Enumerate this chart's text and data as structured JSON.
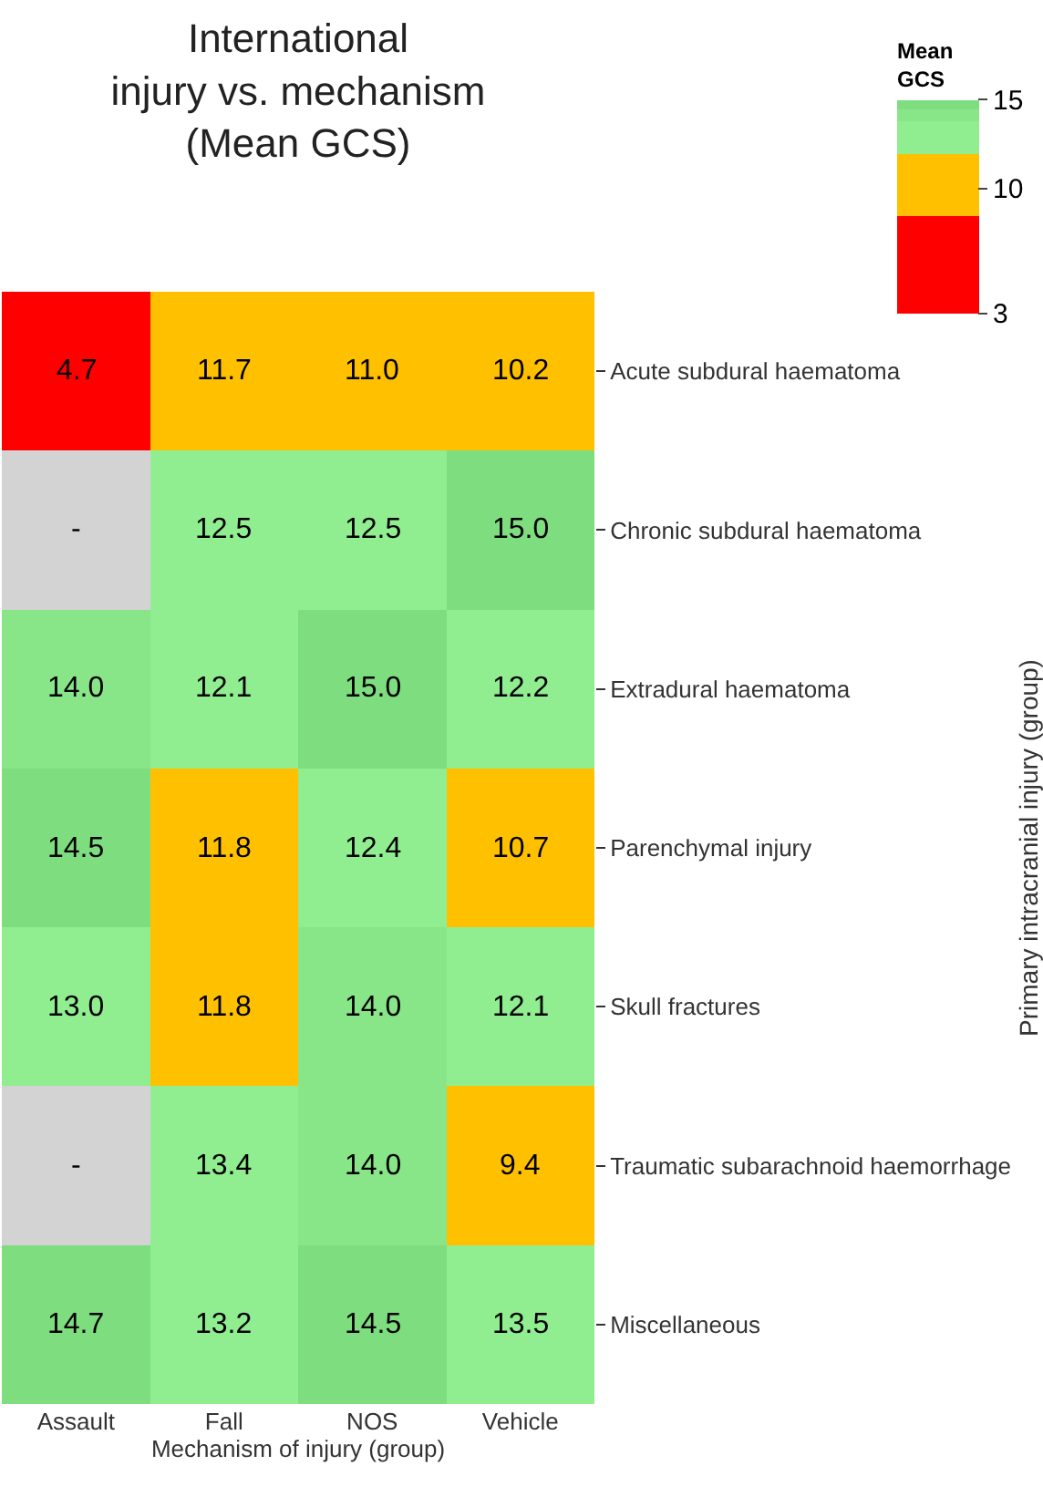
{
  "chart_data": {
    "type": "heatmap",
    "title": "International injury vs. mechanism (Mean GCS)",
    "xlabel": "Mechanism of injury (group)",
    "ylabel": "Primary intracranial injury (group)",
    "clabel": "Mean GCS",
    "categories": [
      "Assault",
      "Fall",
      "NOS",
      "Vehicle"
    ],
    "y_categories": [
      "Acute subdural haematoma",
      "Chronic subdural haematoma",
      "Extradural haematoma",
      "Parenchymal injury",
      "Skull fractures",
      "Traumatic subarachnoid haemorrhage",
      "Miscellaneous"
    ],
    "cells": [
      [
        4.7,
        11.7,
        11.0,
        10.2
      ],
      [
        null,
        12.5,
        12.5,
        15.0
      ],
      [
        14.0,
        12.1,
        15.0,
        12.2
      ],
      [
        14.5,
        11.8,
        12.4,
        10.7
      ],
      [
        13.0,
        11.8,
        14.0,
        12.1
      ],
      [
        null,
        13.4,
        14.0,
        9.4
      ],
      [
        14.7,
        13.2,
        14.5,
        13.5
      ]
    ],
    "cell_labels": [
      [
        "4.7",
        "11.7",
        "11.0",
        "10.2"
      ],
      [
        "-",
        "12.5",
        "12.5",
        "15.0"
      ],
      [
        "14.0",
        "12.1",
        "15.0",
        "12.2"
      ],
      [
        "14.5",
        "11.8",
        "12.4",
        "10.7"
      ],
      [
        "13.0",
        "11.8",
        "14.0",
        "12.1"
      ],
      [
        "-",
        "13.4",
        "14.0",
        "9.4"
      ],
      [
        "14.7",
        "13.2",
        "14.5",
        "13.5"
      ]
    ],
    "clim": [
      3,
      15
    ],
    "cticks": [
      3,
      10,
      15
    ]
  }
}
